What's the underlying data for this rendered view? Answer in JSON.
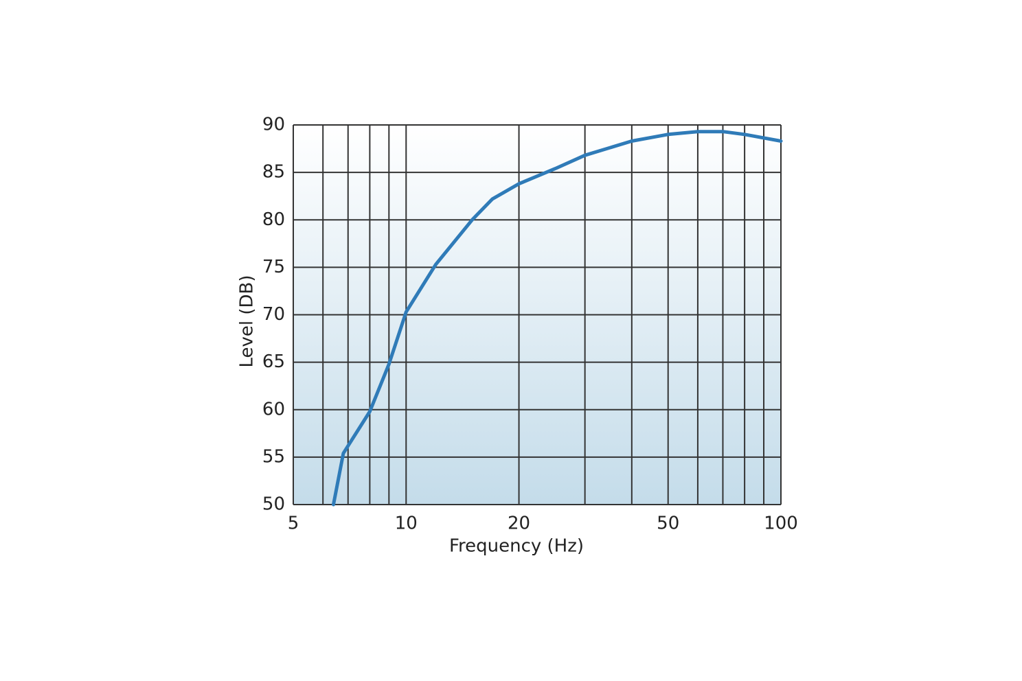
{
  "chart_data": {
    "type": "line",
    "x_label": "Frequency (Hz)",
    "y_label": "Level (DB)",
    "x": [
      6.4,
      6.8,
      8,
      9,
      10,
      12,
      15,
      17,
      20,
      25,
      30,
      40,
      50,
      60,
      70,
      80,
      100
    ],
    "series": [
      {
        "name": "Level",
        "color": "#2f7bb8",
        "values": [
          50,
          55.4,
          59.8,
          64.8,
          70.3,
          75.3,
          80,
          82.2,
          83.8,
          85.4,
          86.8,
          88.3,
          89,
          89.3,
          89.3,
          89,
          88.3
        ]
      }
    ],
    "xlim": [
      5,
      100
    ],
    "ylim": [
      50,
      90
    ],
    "xscale": "log",
    "xticks": [
      5,
      10,
      20,
      50,
      100
    ],
    "xminor": [
      6,
      7,
      8,
      9,
      30,
      40,
      60,
      70,
      80,
      90
    ],
    "yticks": [
      50,
      55,
      60,
      65,
      70,
      75,
      80,
      85,
      90
    ],
    "grid": true
  }
}
